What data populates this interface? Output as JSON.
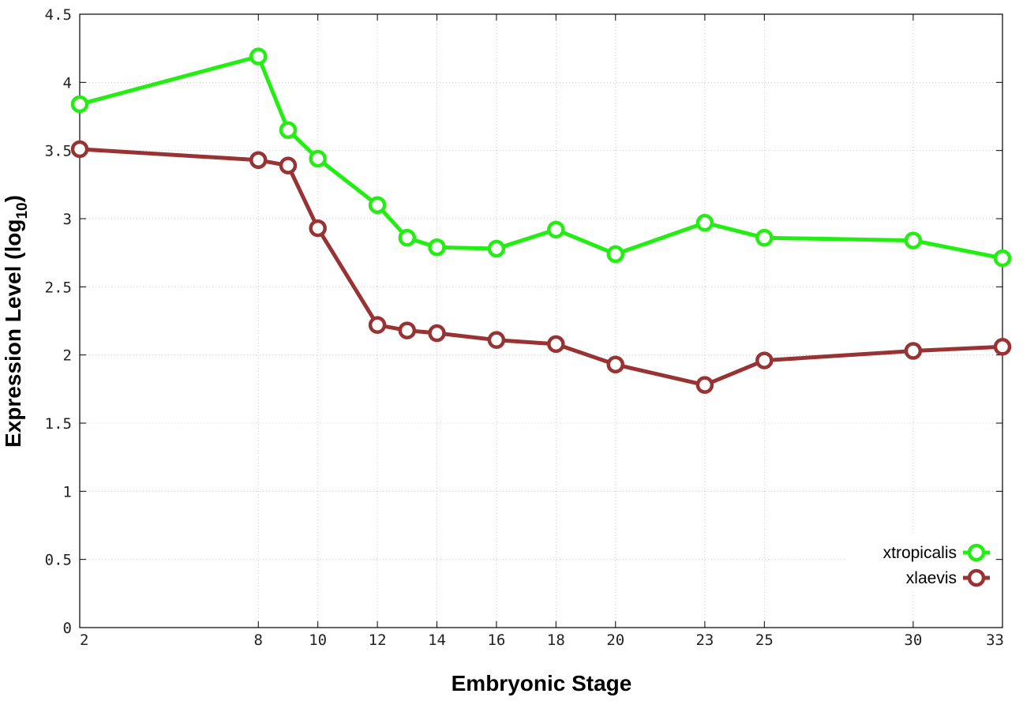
{
  "chart_data": {
    "type": "line",
    "xlabel": "Embryonic Stage",
    "ylabel": "Expression Level (log",
    "ylabel_sub": "10",
    "ylabel_end": ")",
    "x": [
      2,
      8,
      9,
      10,
      12,
      13,
      14,
      16,
      18,
      20,
      23,
      25,
      30,
      33
    ],
    "xticks": [
      2,
      8,
      10,
      12,
      14,
      16,
      18,
      20,
      23,
      25,
      30,
      33
    ],
    "xlim": [
      2,
      33
    ],
    "yticks": [
      "0",
      "0.5",
      "1",
      "1.5",
      "2",
      "2.5",
      "3",
      "3.5",
      "4",
      "4.5"
    ],
    "ylim": [
      0,
      4.5
    ],
    "grid": true,
    "legend_position": "bottom-right",
    "series": [
      {
        "name": "xtropicalis",
        "color": "#22ee11",
        "values": [
          3.84,
          4.19,
          3.65,
          3.44,
          3.1,
          2.86,
          2.79,
          2.78,
          2.92,
          2.74,
          2.97,
          2.86,
          2.84,
          2.71
        ]
      },
      {
        "name": "xlaevis",
        "color": "#993333",
        "values": [
          3.51,
          3.43,
          3.39,
          2.93,
          2.22,
          2.18,
          2.16,
          2.11,
          2.08,
          1.93,
          1.78,
          1.96,
          2.03,
          2.06
        ]
      }
    ]
  }
}
